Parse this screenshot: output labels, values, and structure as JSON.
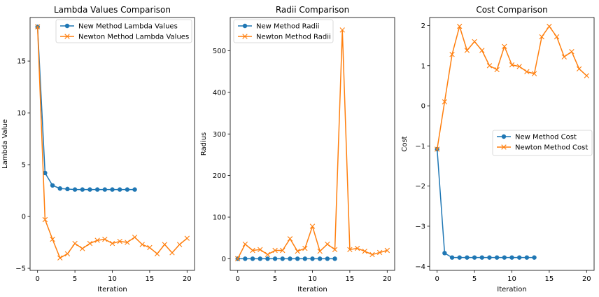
{
  "colors": {
    "new_method": "#1f77b4",
    "newton_method": "#ff7f0e"
  },
  "chart_data": [
    {
      "type": "line",
      "title": "Lambda Values Comparison",
      "xlabel": "Iteration",
      "ylabel": "Lambda Value",
      "xlim": [
        -1,
        21
      ],
      "ylim": [
        -5.2,
        19.2
      ],
      "xticks": [
        0,
        5,
        10,
        15,
        20
      ],
      "yticks": [
        -5,
        0,
        5,
        10,
        15
      ],
      "legend_position": "top-right",
      "grid": false,
      "series": [
        {
          "name": "New Method Lambda Values",
          "marker": "circle",
          "color": "#1f77b4",
          "x": [
            0,
            1,
            2,
            3,
            4,
            5,
            6,
            7,
            8,
            9,
            10,
            11,
            12,
            13
          ],
          "y": [
            18.3,
            4.2,
            3.0,
            2.7,
            2.65,
            2.6,
            2.6,
            2.6,
            2.6,
            2.6,
            2.6,
            2.6,
            2.6,
            2.6
          ]
        },
        {
          "name": "Newton Method Lambda Values",
          "marker": "x",
          "color": "#ff7f0e",
          "x": [
            0,
            1,
            2,
            3,
            4,
            5,
            6,
            7,
            8,
            9,
            10,
            11,
            12,
            13,
            14,
            15,
            16,
            17,
            18,
            19,
            20
          ],
          "y": [
            18.3,
            -0.3,
            -2.2,
            -4.0,
            -3.6,
            -2.6,
            -3.1,
            -2.6,
            -2.3,
            -2.2,
            -2.6,
            -2.4,
            -2.5,
            -2.0,
            -2.7,
            -3.0,
            -3.6,
            -2.7,
            -3.5,
            -2.7,
            -2.1
          ]
        }
      ]
    },
    {
      "type": "line",
      "title": "Radii Comparison",
      "xlabel": "Iteration",
      "ylabel": "Radius",
      "xlim": [
        -1,
        21
      ],
      "ylim": [
        -28,
        580
      ],
      "xticks": [
        0,
        5,
        10,
        15,
        20
      ],
      "yticks": [
        0,
        100,
        200,
        300,
        400,
        500
      ],
      "legend_position": "top-left",
      "grid": false,
      "series": [
        {
          "name": "New Method Radii",
          "marker": "circle",
          "color": "#1f77b4",
          "x": [
            0,
            1,
            2,
            3,
            4,
            5,
            6,
            7,
            8,
            9,
            10,
            11,
            12,
            13
          ],
          "y": [
            0,
            0,
            0,
            0,
            0,
            0,
            0,
            0,
            0,
            0,
            0,
            0,
            0,
            0
          ]
        },
        {
          "name": "Newton Method Radii",
          "marker": "x",
          "color": "#ff7f0e",
          "x": [
            0,
            1,
            2,
            3,
            4,
            5,
            6,
            7,
            8,
            9,
            10,
            11,
            12,
            13,
            14,
            15,
            16,
            17,
            18,
            19,
            20
          ],
          "y": [
            0,
            35,
            20,
            22,
            10,
            20,
            20,
            48,
            18,
            25,
            78,
            18,
            35,
            22,
            550,
            22,
            25,
            18,
            10,
            15,
            20
          ]
        }
      ]
    },
    {
      "type": "line",
      "title": "Cost Comparison",
      "xlabel": "Iteration",
      "ylabel": "Cost",
      "xlim": [
        -1,
        21
      ],
      "ylim": [
        -4.1,
        2.2
      ],
      "xticks": [
        0,
        5,
        10,
        15,
        20
      ],
      "yticks": [
        -4,
        -3,
        -2,
        -1,
        0,
        1,
        2
      ],
      "legend_position": "center-right",
      "grid": false,
      "series": [
        {
          "name": "New Method Cost",
          "marker": "circle",
          "color": "#1f77b4",
          "x": [
            0,
            1,
            2,
            3,
            4,
            5,
            6,
            7,
            8,
            9,
            10,
            11,
            12,
            13
          ],
          "y": [
            -1.08,
            -3.67,
            -3.78,
            -3.78,
            -3.78,
            -3.78,
            -3.78,
            -3.78,
            -3.78,
            -3.78,
            -3.78,
            -3.78,
            -3.78,
            -3.78
          ]
        },
        {
          "name": "Newton Method Cost",
          "marker": "x",
          "color": "#ff7f0e",
          "x": [
            0,
            1,
            2,
            3,
            4,
            5,
            6,
            7,
            8,
            9,
            10,
            11,
            12,
            13,
            14,
            15,
            16,
            17,
            18,
            19,
            20
          ],
          "y": [
            -1.08,
            0.1,
            1.28,
            1.98,
            1.38,
            1.6,
            1.38,
            1.0,
            0.9,
            1.48,
            1.02,
            0.98,
            0.85,
            0.8,
            1.72,
            1.98,
            1.72,
            1.22,
            1.35,
            0.92,
            0.75
          ]
        }
      ]
    }
  ]
}
